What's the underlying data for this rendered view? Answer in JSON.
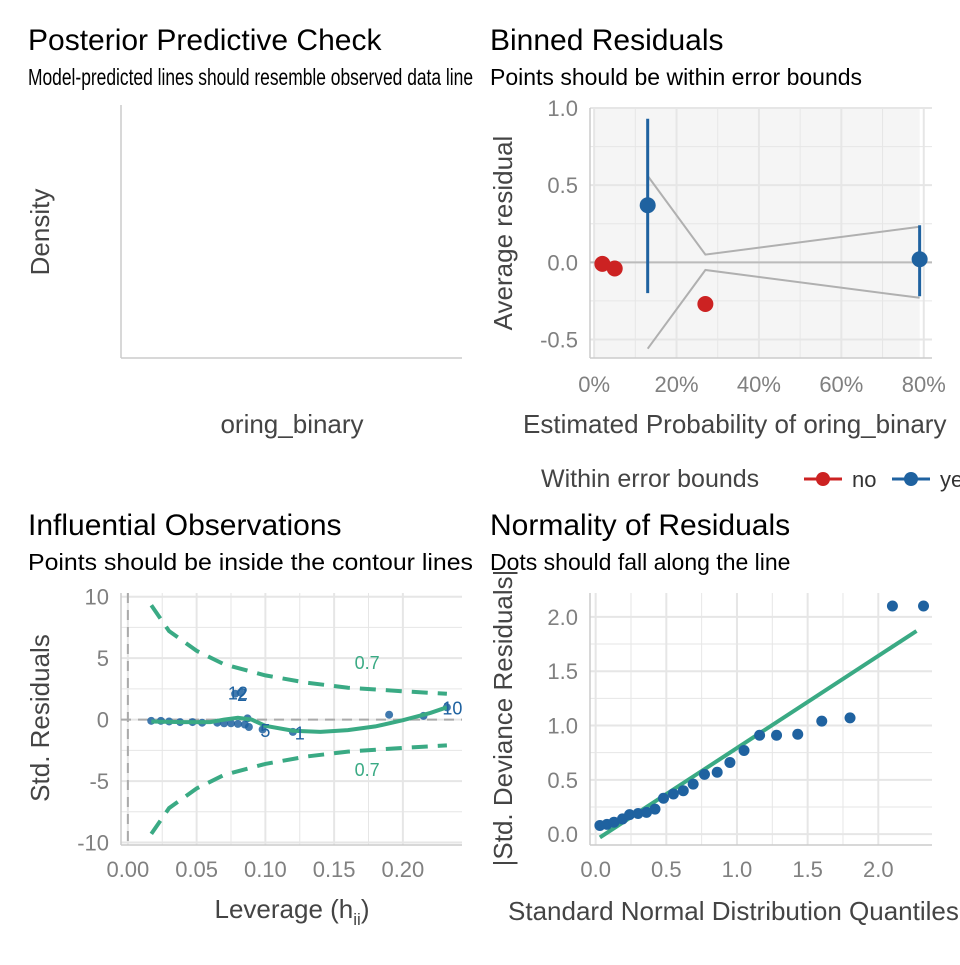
{
  "colors": {
    "red": "#cc2222",
    "blue": "#1f62a0",
    "green": "#3aaa84",
    "grid": "#e6e6e6",
    "band": "#b0b0b0"
  },
  "chart_data": [
    {
      "panel": "ppc",
      "type": "line",
      "title": "Posterior Predictive Check",
      "subtitle": "Model-predicted lines should resemble observed data line",
      "xlabel": "oring_binary",
      "ylabel": "Density",
      "series": []
    },
    {
      "panel": "binned",
      "type": "scatter",
      "title": "Binned Residuals",
      "subtitle": "Points should be within error bounds",
      "xlabel": "Estimated Probability of oring_binary",
      "ylabel": "Average residual",
      "xlim": [
        -0.01,
        0.82
      ],
      "ylim": [
        -0.62,
        1.0
      ],
      "xticks": [
        0,
        0.2,
        0.4,
        0.6,
        0.8
      ],
      "xtick_labels": [
        "0%",
        "20%",
        "40%",
        "60%",
        "80%"
      ],
      "yticks": [
        -0.5,
        0.0,
        0.5,
        1.0
      ],
      "ytick_labels": [
        "-0.5",
        "0.0",
        "0.5",
        "1.0"
      ],
      "legend": {
        "title": "Within error bounds",
        "entries": [
          "no",
          "yes"
        ],
        "position": "bottom"
      },
      "points": [
        {
          "x": 0.02,
          "y": -0.01,
          "within": "no"
        },
        {
          "x": 0.05,
          "y": -0.04,
          "within": "no"
        },
        {
          "x": 0.13,
          "y": 0.37,
          "within": "yes",
          "ymin": -0.2,
          "ymax": 0.93
        },
        {
          "x": 0.27,
          "y": -0.27,
          "within": "no"
        },
        {
          "x": 0.79,
          "y": 0.02,
          "within": "yes",
          "ymin": -0.22,
          "ymax": 0.24
        }
      ],
      "bounds_x": [
        0.13,
        0.27,
        0.79
      ],
      "bounds_upper": [
        0.56,
        0.05,
        0.23
      ],
      "bounds_lower": [
        -0.56,
        -0.05,
        -0.23
      ],
      "grid": true
    },
    {
      "panel": "influential",
      "type": "scatter",
      "title": "Influential Observations",
      "subtitle": "Points should be inside the contour lines",
      "xlabel": "Leverage (h",
      "xlabel_sub": "ii",
      "xlabel_end": ")",
      "ylabel": "Std. Residuals",
      "xlim": [
        -0.005,
        0.243
      ],
      "ylim": [
        -10.2,
        10.3
      ],
      "xticks": [
        0.0,
        0.05,
        0.1,
        0.15,
        0.2
      ],
      "xtick_labels": [
        "0.00",
        "0.05",
        "0.10",
        "0.15",
        "0.20"
      ],
      "yticks": [
        -10,
        -5,
        0,
        5,
        10
      ],
      "ytick_labels": [
        "-10",
        "-5",
        "0",
        "5",
        "10"
      ],
      "contour_label": "0.7",
      "points": [
        {
          "x": 0.017,
          "y": -0.1
        },
        {
          "x": 0.024,
          "y": -0.1
        },
        {
          "x": 0.03,
          "y": -0.15
        },
        {
          "x": 0.038,
          "y": -0.2
        },
        {
          "x": 0.047,
          "y": -0.2
        },
        {
          "x": 0.054,
          "y": -0.25
        },
        {
          "x": 0.065,
          "y": -0.25
        },
        {
          "x": 0.07,
          "y": -0.3
        },
        {
          "x": 0.075,
          "y": -0.3
        },
        {
          "x": 0.08,
          "y": -0.35
        },
        {
          "x": 0.085,
          "y": -0.4
        },
        {
          "x": 0.088,
          "y": -0.6
        },
        {
          "x": 0.098,
          "y": -0.8
        },
        {
          "x": 0.12,
          "y": -1.0
        },
        {
          "x": 0.078,
          "y": 2.1
        },
        {
          "x": 0.082,
          "y": 2.2
        },
        {
          "x": 0.087,
          "y": 0.1
        },
        {
          "x": 0.19,
          "y": 0.4
        },
        {
          "x": 0.215,
          "y": 0.3
        },
        {
          "x": 0.232,
          "y": 1.0
        }
      ],
      "labels": [
        {
          "text": "12",
          "x": 0.08,
          "y": 2.2
        },
        {
          "text": "2",
          "x": 0.083,
          "y": 2.1
        },
        {
          "text": "5",
          "x": 0.1,
          "y": -0.85
        },
        {
          "text": "1",
          "x": 0.125,
          "y": -1.05
        },
        {
          "text": "10",
          "x": 0.236,
          "y": 1.0
        }
      ],
      "smooth": {
        "x": [
          0.017,
          0.04,
          0.06,
          0.07,
          0.08,
          0.09,
          0.1,
          0.12,
          0.14,
          0.16,
          0.18,
          0.2,
          0.22,
          0.232
        ],
        "y": [
          -0.15,
          -0.2,
          -0.2,
          0.0,
          0.15,
          0.0,
          -0.5,
          -0.9,
          -1.0,
          -0.85,
          -0.55,
          -0.05,
          0.55,
          1.0
        ]
      },
      "contour_x": [
        0.017,
        0.03,
        0.05,
        0.07,
        0.1,
        0.13,
        0.16,
        0.2,
        0.232
      ],
      "contour_upper": [
        9.3,
        7.2,
        5.6,
        4.5,
        3.6,
        3.0,
        2.6,
        2.3,
        2.1
      ],
      "grid": true
    },
    {
      "panel": "qq",
      "type": "scatter",
      "title": "Normality of Residuals",
      "subtitle": "Dots should fall along the line",
      "xlabel": "Standard Normal Distribution Quantiles",
      "ylabel": "|Std. Deviance Residuals|",
      "xlim": [
        -0.04,
        2.38
      ],
      "ylim": [
        -0.1,
        2.22
      ],
      "xticks": [
        0.0,
        0.5,
        1.0,
        1.5,
        2.0
      ],
      "xtick_labels": [
        "0.0",
        "0.5",
        "1.0",
        "1.5",
        "2.0"
      ],
      "yticks": [
        0.0,
        0.5,
        1.0,
        1.5,
        2.0
      ],
      "ytick_labels": [
        "0.0",
        "0.5",
        "1.0",
        "1.5",
        "2.0"
      ],
      "points": [
        {
          "x": 0.03,
          "y": 0.08
        },
        {
          "x": 0.08,
          "y": 0.09
        },
        {
          "x": 0.13,
          "y": 0.11
        },
        {
          "x": 0.19,
          "y": 0.14
        },
        {
          "x": 0.24,
          "y": 0.18
        },
        {
          "x": 0.3,
          "y": 0.19
        },
        {
          "x": 0.36,
          "y": 0.2
        },
        {
          "x": 0.42,
          "y": 0.23
        },
        {
          "x": 0.48,
          "y": 0.33
        },
        {
          "x": 0.55,
          "y": 0.37
        },
        {
          "x": 0.62,
          "y": 0.4
        },
        {
          "x": 0.69,
          "y": 0.46
        },
        {
          "x": 0.77,
          "y": 0.55
        },
        {
          "x": 0.86,
          "y": 0.57
        },
        {
          "x": 0.95,
          "y": 0.66
        },
        {
          "x": 1.05,
          "y": 0.77
        },
        {
          "x": 1.16,
          "y": 0.91
        },
        {
          "x": 1.28,
          "y": 0.91
        },
        {
          "x": 1.43,
          "y": 0.92
        },
        {
          "x": 1.6,
          "y": 1.04
        },
        {
          "x": 1.8,
          "y": 1.07
        },
        {
          "x": 2.1,
          "y": 2.1
        },
        {
          "x": 2.32,
          "y": 2.1
        }
      ],
      "line": {
        "x": [
          0.03,
          2.27
        ],
        "y": [
          -0.03,
          1.87
        ]
      },
      "grid": true
    }
  ]
}
